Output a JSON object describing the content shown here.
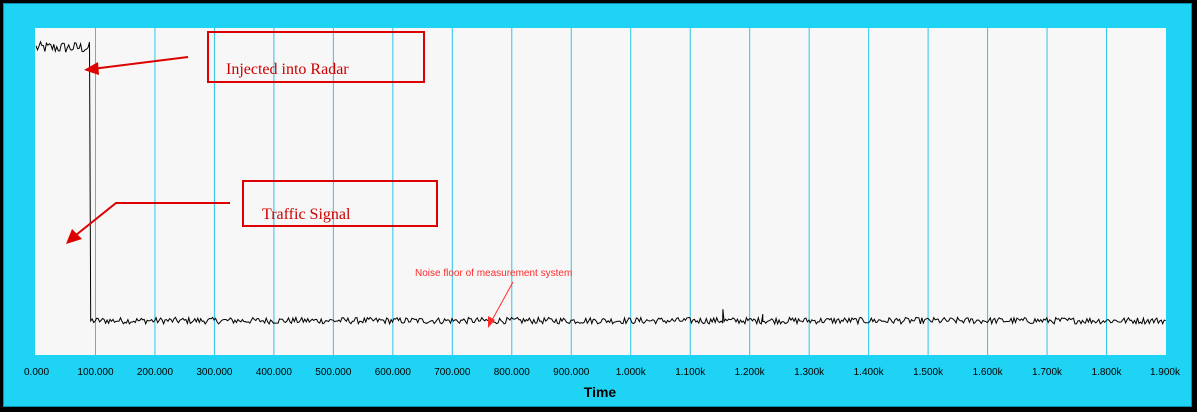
{
  "chart_data": {
    "type": "line",
    "title": "",
    "xlabel": "Time",
    "ylabel": "",
    "xlim": [
      0,
      1900000
    ],
    "ylim": [
      0,
      1
    ],
    "grid": "vertical",
    "x_ticks": [
      0,
      100000,
      200000,
      300000,
      400000,
      500000,
      600000,
      700000,
      800000,
      900000,
      1000000,
      1100000,
      1200000,
      1300000,
      1400000,
      1500000,
      1600000,
      1700000,
      1800000,
      1900000
    ],
    "x_tick_labels": [
      "0.000",
      "100.000",
      "200.000",
      "300.000",
      "400.000",
      "500.000",
      "600.000",
      "700.000",
      "800.000",
      "900.000",
      "1.000k",
      "1.100k",
      "1.200k",
      "1.300k",
      "1.400k",
      "1.500k",
      "1.600k",
      "1.700k",
      "1.800k",
      "1.900k"
    ],
    "series": [
      {
        "color": "#000000",
        "segments": [
          {
            "x_start": 0,
            "x_end": 92000,
            "level": 0.94,
            "noise": 0.018
          },
          {
            "x_start": 92000,
            "x_end": 1900000,
            "level": 0.105,
            "noise": 0.01
          }
        ],
        "spikes": [
          {
            "x": 1155000,
            "value": 0.14
          },
          {
            "x": 1222000,
            "value": 0.125
          }
        ]
      }
    ],
    "annotations": [
      {
        "text": "Injected into Radar",
        "color": "#cc0000"
      },
      {
        "text": "Traffic Signal",
        "color": "#cc0000"
      },
      {
        "text": "Noise floor of measurement system",
        "color": "#ff2a2a"
      }
    ]
  },
  "colors": {
    "frame": "#1ed3f4",
    "plot_bg": "#f7f7f7",
    "grid": "#2bc6ea",
    "annotation": "#dd0000"
  }
}
